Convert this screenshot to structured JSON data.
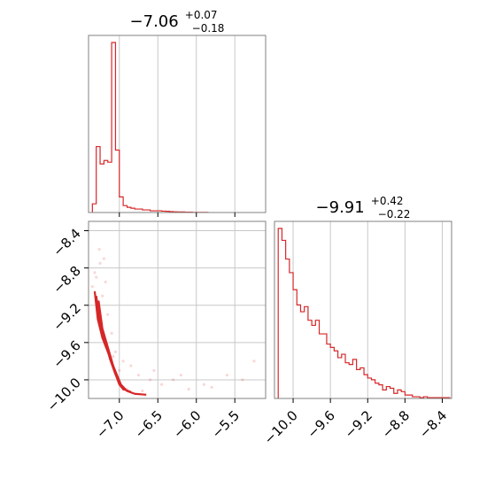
{
  "chart_data": [
    {
      "type": "histogram",
      "panel": "top-left",
      "title": {
        "main": "−7.06",
        "sup": "+0.07",
        "sub": "−0.18"
      },
      "xlim": [
        -7.4,
        -5.1
      ],
      "x_ticks": [
        -7.0,
        -6.5,
        -6.0,
        -5.5
      ],
      "bin_edges": [
        -7.35,
        -7.3,
        -7.25,
        -7.2,
        -7.15,
        -7.1,
        -7.05,
        -7.0,
        -6.95,
        -6.9,
        -6.85,
        -6.8,
        -6.75,
        -6.7,
        -6.65,
        -6.6,
        -6.55,
        -6.5,
        -6.45,
        -6.4,
        -6.35,
        -6.3,
        -6.25,
        -6.2,
        -6.15,
        -6.1,
        -6.05,
        -6.0,
        -5.95,
        -5.9,
        -5.85
      ],
      "counts": [
        5,
        38,
        28,
        30,
        29,
        98,
        36,
        9,
        4,
        3,
        2.5,
        2,
        2,
        1.5,
        1.5,
        1,
        1,
        1,
        0.8,
        0.7,
        0.5,
        0.4,
        0.3,
        0.3,
        0.2,
        0.2,
        0.1,
        0.1,
        0.1,
        0.1
      ],
      "color": "#d62728",
      "grid": true
    },
    {
      "type": "scatter-contour",
      "panel": "bottom-left",
      "xlim": [
        -7.4,
        -5.1
      ],
      "ylim": [
        -10.2,
        -8.3
      ],
      "x_ticks": [
        -7.0,
        -6.5,
        -6.0,
        -5.5
      ],
      "y_ticks": [
        -8.4,
        -8.8,
        -9.2,
        -9.6,
        -10.0
      ],
      "contour_levels": [
        {
          "x": [
            -7.32,
            -7.28,
            -7.22,
            -7.15,
            -7.08,
            -7.03,
            -6.98,
            -6.9,
            -6.8,
            -6.65
          ],
          "y": [
            -9.05,
            -9.35,
            -9.55,
            -9.7,
            -9.85,
            -9.95,
            -10.05,
            -10.12,
            -10.15,
            -10.16
          ]
        },
        {
          "x": [
            -7.3,
            -7.25,
            -7.18,
            -7.12,
            -7.06,
            -7.01,
            -6.95,
            -6.85
          ],
          "y": [
            -9.1,
            -9.4,
            -9.6,
            -9.78,
            -9.92,
            -10.02,
            -10.1,
            -10.13
          ]
        },
        {
          "x": [
            -7.27,
            -7.22,
            -7.15,
            -7.09,
            -7.04,
            -7.0,
            -6.94
          ],
          "y": [
            -9.15,
            -9.45,
            -9.65,
            -9.82,
            -9.96,
            -10.05,
            -10.11
          ]
        }
      ],
      "scatter": {
        "x": [
          -7.25,
          -7.3,
          -7.2,
          -7.18,
          -7.35,
          -7.1,
          -7.05,
          -6.95,
          -6.85,
          -6.75,
          -6.6,
          -6.45,
          -6.3,
          -6.1,
          -5.9,
          -5.6,
          -5.4,
          -5.25,
          -6.9,
          -6.7,
          -7.28,
          -7.22,
          -7.15,
          -7.32,
          -7.26,
          -6.55,
          -6.2,
          -5.8,
          -7.08,
          -7.0
        ],
        "y": [
          -8.75,
          -8.9,
          -8.7,
          -8.95,
          -9.0,
          -9.5,
          -9.7,
          -9.8,
          -9.85,
          -9.95,
          -10.0,
          -10.05,
          -10.0,
          -10.1,
          -10.05,
          -9.95,
          -10.0,
          -9.8,
          -10.1,
          -10.12,
          -9.2,
          -9.1,
          -9.3,
          -8.85,
          -8.6,
          -9.9,
          -9.95,
          -10.08,
          -9.75,
          -9.9
        ]
      },
      "color": "#d62728",
      "grid": true
    },
    {
      "type": "histogram",
      "panel": "bottom-right",
      "title": {
        "main": "−9.91",
        "sup": "+0.42",
        "sub": "−0.22"
      },
      "xlim": [
        -10.2,
        -8.3
      ],
      "x_ticks": [
        -10.0,
        -9.6,
        -9.2,
        -8.8,
        -8.4
      ],
      "bin_edges": [
        -10.16,
        -10.12,
        -10.08,
        -10.04,
        -10.0,
        -9.96,
        -9.92,
        -9.88,
        -9.84,
        -9.8,
        -9.76,
        -9.72,
        -9.68,
        -9.64,
        -9.6,
        -9.56,
        -9.52,
        -9.48,
        -9.44,
        -9.4,
        -9.36,
        -9.32,
        -9.28,
        -9.24,
        -9.2,
        -9.16,
        -9.12,
        -9.08,
        -9.04,
        -9.0,
        -8.96,
        -8.92,
        -8.88,
        -8.84,
        -8.8,
        -8.76,
        -8.72,
        -8.68,
        -8.64,
        -8.6,
        -8.56,
        -8.52,
        -8.48,
        -8.44,
        -8.4,
        -8.36,
        -8.32
      ],
      "counts": [
        100,
        93,
        82,
        74,
        64,
        55,
        51,
        54,
        46,
        43,
        46,
        38,
        38,
        32,
        30,
        28,
        24,
        26,
        21,
        20,
        23,
        17,
        18,
        14,
        12,
        11,
        9,
        8,
        5,
        7,
        6,
        3,
        5,
        4,
        2,
        2,
        1,
        1,
        0.5,
        1,
        0.5,
        0.5,
        0.5,
        0.5,
        0.5,
        0.5
      ],
      "color": "#d62728",
      "grid": true
    }
  ]
}
